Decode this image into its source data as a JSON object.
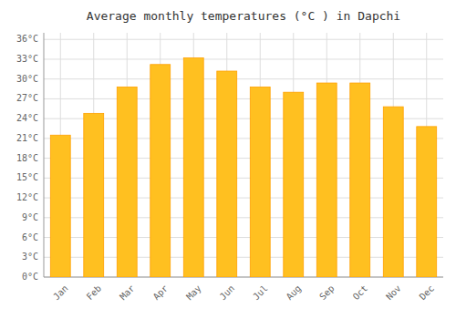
{
  "chart_data": {
    "type": "bar",
    "title": "Average monthly temperatures (°C ) in Dapchi",
    "categories": [
      "Jan",
      "Feb",
      "Mar",
      "Apr",
      "May",
      "Jun",
      "Jul",
      "Aug",
      "Sep",
      "Oct",
      "Nov",
      "Dec"
    ],
    "values": [
      21.5,
      24.8,
      28.8,
      32.2,
      33.2,
      31.2,
      28.8,
      28.0,
      29.4,
      29.4,
      25.8,
      22.8
    ],
    "color": "#FFC020",
    "ylim": [
      0,
      37
    ],
    "yticks": [
      {
        "value": 0,
        "label": "0°C"
      },
      {
        "value": 3,
        "label": "3°C"
      },
      {
        "value": 6,
        "label": "6°C"
      },
      {
        "value": 9,
        "label": "9°C"
      },
      {
        "value": 12,
        "label": "12°C"
      },
      {
        "value": 15,
        "label": "15°C"
      },
      {
        "value": 18,
        "label": "18°C"
      },
      {
        "value": 21,
        "label": "21°C"
      },
      {
        "value": 24,
        "label": "24°C"
      },
      {
        "value": 27,
        "label": "27°C"
      },
      {
        "value": 30,
        "label": "30°C"
      },
      {
        "value": 33,
        "label": "33°C"
      },
      {
        "value": 36,
        "label": "36°C"
      }
    ],
    "grid": true
  }
}
